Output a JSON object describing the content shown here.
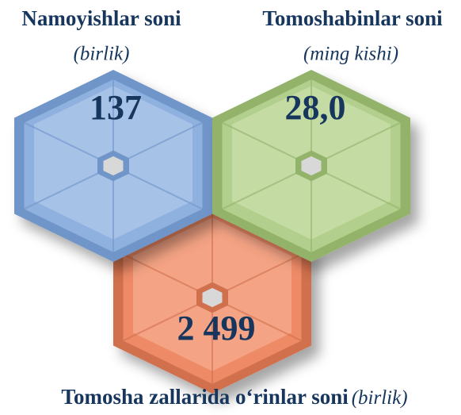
{
  "items": [
    {
      "title": "Namoyishlar soni",
      "unit": "(birlik)",
      "value": "137"
    },
    {
      "title": "Tomoshabinlar soni",
      "unit": "(ming kishi)",
      "value": "28,0"
    },
    {
      "title": "Tomosha zallarida o‘rinlar soni",
      "unit": "(birlik)",
      "value": "2 499"
    }
  ]
}
